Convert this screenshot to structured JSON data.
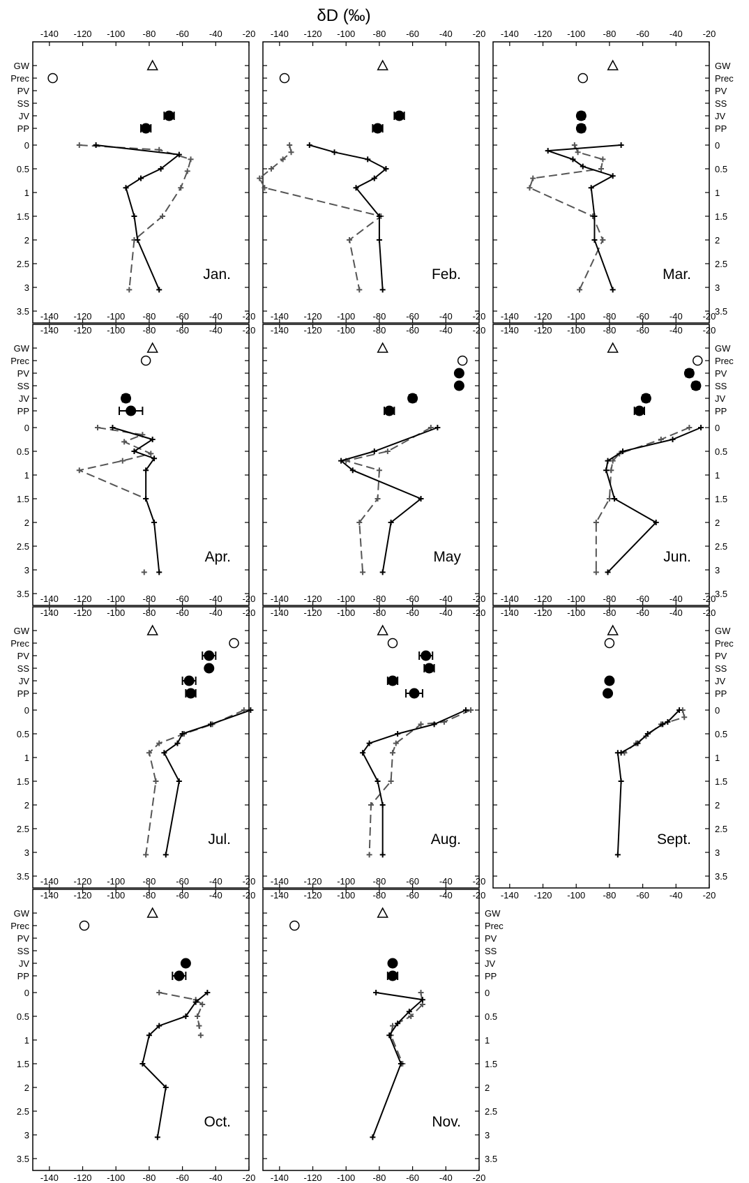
{
  "figure": {
    "title": "δD (‰)"
  },
  "axes": {
    "x_ticks": [
      "-140",
      "-120",
      "-100",
      "-80",
      "-60",
      "-40",
      "-20"
    ],
    "y_ticks": [
      "0",
      "0.5",
      "1",
      "1.5",
      "2",
      "2.5",
      "3",
      "3.5"
    ],
    "categories": [
      "GW",
      "Prec",
      "PV",
      "SS",
      "JV",
      "PP"
    ]
  },
  "chart_data": {
    "type": "scatter",
    "xlim": [
      -150,
      -20
    ],
    "ylim": [
      3.5,
      0
    ],
    "xticks": [
      -140,
      -120,
      -100,
      -80,
      -60,
      -40,
      -20
    ],
    "yticks": [
      0,
      0.5,
      1,
      1.5,
      2,
      2.5,
      3,
      3.5
    ],
    "categories": [
      "GW",
      "Prec",
      "PV",
      "SS",
      "JV",
      "PP"
    ],
    "panels": [
      {
        "label": "Jan.",
        "markers": [
          {
            "cat": "GW",
            "x": -78,
            "style": "triangle"
          },
          {
            "cat": "Prec",
            "x": -138,
            "style": "open"
          },
          {
            "cat": "JV",
            "x": -68,
            "style": "filled",
            "err": 3
          },
          {
            "cat": "PP",
            "x": -82,
            "style": "filled",
            "err": 3
          }
        ],
        "solid": [
          [
            -112,
            0
          ],
          [
            -62,
            0.2
          ],
          [
            -73,
            0.5
          ],
          [
            -85,
            0.7
          ],
          [
            -94,
            0.9
          ],
          [
            -89,
            1.5
          ],
          [
            -87,
            2
          ],
          [
            -74,
            3.05
          ]
        ],
        "dashed": [
          [
            -122,
            0
          ],
          [
            -74,
            0.1
          ],
          [
            -55,
            0.3
          ],
          [
            -57,
            0.55
          ],
          [
            -61,
            0.9
          ],
          [
            -72,
            1.5
          ],
          [
            -89,
            2
          ],
          [
            -92,
            3.05
          ]
        ]
      },
      {
        "label": "Feb.",
        "markers": [
          {
            "cat": "GW",
            "x": -78,
            "style": "triangle"
          },
          {
            "cat": "Prec",
            "x": -137,
            "style": "open"
          },
          {
            "cat": "JV",
            "x": -68,
            "style": "filled",
            "err": 3
          },
          {
            "cat": "PP",
            "x": -81,
            "style": "filled",
            "err": 3
          }
        ],
        "solid": [
          [
            -122,
            0
          ],
          [
            -107,
            0.15
          ],
          [
            -87,
            0.3
          ],
          [
            -76,
            0.5
          ],
          [
            -83,
            0.7
          ],
          [
            -94,
            0.9
          ],
          [
            -80,
            1.5
          ],
          [
            -80,
            2
          ],
          [
            -78,
            3.05
          ]
        ],
        "dashed": [
          [
            -134,
            0
          ],
          [
            -133,
            0.15
          ],
          [
            -138,
            0.3
          ],
          [
            -145,
            0.5
          ],
          [
            -152,
            0.7
          ],
          [
            -149,
            0.9
          ],
          [
            -79,
            1.5
          ],
          [
            -98,
            2
          ],
          [
            -92,
            3.05
          ]
        ]
      },
      {
        "label": "Mar.",
        "markers": [
          {
            "cat": "GW",
            "x": -78,
            "style": "triangle"
          },
          {
            "cat": "Prec",
            "x": -96,
            "style": "open"
          },
          {
            "cat": "JV",
            "x": -97,
            "style": "filled",
            "err": 2
          },
          {
            "cat": "PP",
            "x": -97,
            "style": "filled",
            "err": 2
          }
        ],
        "solid": [
          [
            -73,
            0
          ],
          [
            -117,
            0.12
          ],
          [
            -102,
            0.3
          ],
          [
            -96,
            0.45
          ],
          [
            -78,
            0.65
          ],
          [
            -91,
            0.9
          ],
          [
            -89,
            1.5
          ],
          [
            -89,
            2
          ],
          [
            -78,
            3.05
          ]
        ],
        "dashed": [
          [
            -101,
            0
          ],
          [
            -99,
            0.15
          ],
          [
            -84,
            0.3
          ],
          [
            -85,
            0.5
          ],
          [
            -126,
            0.7
          ],
          [
            -128,
            0.9
          ],
          [
            -90,
            1.5
          ],
          [
            -84,
            2
          ],
          [
            -98,
            3.05
          ]
        ]
      },
      {
        "label": "Apr.",
        "markers": [
          {
            "cat": "GW",
            "x": -78,
            "style": "triangle"
          },
          {
            "cat": "Prec",
            "x": -82,
            "style": "open"
          },
          {
            "cat": "JV",
            "x": -94,
            "style": "filled",
            "err": 2
          },
          {
            "cat": "PP",
            "x": -91,
            "style": "filled",
            "err": 7
          }
        ],
        "solid": [
          [
            -102,
            0
          ],
          [
            -78,
            0.25
          ],
          [
            -89,
            0.5
          ],
          [
            -77,
            0.65
          ],
          [
            -82,
            0.9
          ],
          [
            -82,
            1.5
          ],
          [
            -77,
            2
          ],
          [
            -74,
            3.05
          ]
        ],
        "dashed": [
          [
            -111,
            0
          ],
          [
            -84,
            0.15
          ],
          [
            -95,
            0.3
          ],
          [
            -79,
            0.55
          ],
          [
            -96,
            0.7
          ],
          [
            -122,
            0.9
          ],
          [
            -82,
            1.5
          ]
        ],
        "dashed_extra": [
          [
            -83,
            3.05
          ]
        ]
      },
      {
        "label": "May",
        "markers": [
          {
            "cat": "GW",
            "x": -78,
            "style": "triangle"
          },
          {
            "cat": "Prec",
            "x": -30,
            "style": "open"
          },
          {
            "cat": "PV",
            "x": -32,
            "style": "filled",
            "err": 0
          },
          {
            "cat": "SS",
            "x": -32,
            "style": "filled",
            "err": 0
          },
          {
            "cat": "JV",
            "x": -60,
            "style": "filled",
            "err": 2
          },
          {
            "cat": "PP",
            "x": -74,
            "style": "filled",
            "err": 3
          }
        ],
        "solid": [
          [
            -45,
            0
          ],
          [
            -83,
            0.5
          ],
          [
            -103,
            0.7
          ],
          [
            -96,
            0.9
          ],
          [
            -55,
            1.5
          ],
          [
            -73,
            2
          ],
          [
            -78,
            3.05
          ]
        ],
        "dashed": [
          [
            -49,
            0
          ],
          [
            -75,
            0.5
          ],
          [
            -100,
            0.7
          ],
          [
            -80,
            0.9
          ],
          [
            -81,
            1.5
          ],
          [
            -92,
            2
          ],
          [
            -90,
            3.05
          ]
        ]
      },
      {
        "label": "Jun.",
        "markers": [
          {
            "cat": "GW",
            "x": -78,
            "style": "triangle"
          },
          {
            "cat": "Prec",
            "x": -27,
            "style": "open"
          },
          {
            "cat": "PV",
            "x": -32,
            "style": "filled",
            "err": 2
          },
          {
            "cat": "SS",
            "x": -28,
            "style": "filled",
            "err": 2
          },
          {
            "cat": "JV",
            "x": -58,
            "style": "filled",
            "err": 2
          },
          {
            "cat": "PP",
            "x": -62,
            "style": "filled",
            "err": 3
          }
        ],
        "solid": [
          [
            -25,
            0
          ],
          [
            -42,
            0.25
          ],
          [
            -72,
            0.5
          ],
          [
            -81,
            0.7
          ],
          [
            -82,
            0.9
          ],
          [
            -77,
            1.5
          ],
          [
            -52,
            2
          ],
          [
            -81,
            3.05
          ]
        ],
        "dashed": [
          [
            -32,
            0
          ],
          [
            -49,
            0.25
          ],
          [
            -74,
            0.55
          ],
          [
            -78,
            0.7
          ],
          [
            -79,
            0.9
          ],
          [
            -80,
            1.5
          ],
          [
            -88,
            2
          ],
          [
            -88,
            3.05
          ]
        ]
      },
      {
        "label": "Jul.",
        "markers": [
          {
            "cat": "GW",
            "x": -78,
            "style": "triangle"
          },
          {
            "cat": "Prec",
            "x": -29,
            "style": "open"
          },
          {
            "cat": "PV",
            "x": -44,
            "style": "filled",
            "err": 4
          },
          {
            "cat": "SS",
            "x": -44,
            "style": "filled",
            "err": 0
          },
          {
            "cat": "JV",
            "x": -56,
            "style": "filled",
            "err": 4
          },
          {
            "cat": "PP",
            "x": -55,
            "style": "filled",
            "err": 3
          }
        ],
        "solid": [
          [
            -19,
            0
          ],
          [
            -43,
            0.3
          ],
          [
            -60,
            0.5
          ],
          [
            -63,
            0.7
          ],
          [
            -71,
            0.9
          ],
          [
            -62,
            1.5
          ],
          [
            -70,
            3.05
          ]
        ],
        "dashed": [
          [
            -23,
            0
          ],
          [
            -42,
            0.3
          ],
          [
            -59,
            0.5
          ],
          [
            -74,
            0.7
          ],
          [
            -80,
            0.9
          ],
          [
            -76,
            1.5
          ],
          [
            -82,
            3.05
          ]
        ]
      },
      {
        "label": "Aug.",
        "markers": [
          {
            "cat": "GW",
            "x": -78,
            "style": "triangle"
          },
          {
            "cat": "Prec",
            "x": -72,
            "style": "open"
          },
          {
            "cat": "PV",
            "x": -52,
            "style": "filled",
            "err": 4
          },
          {
            "cat": "SS",
            "x": -50,
            "style": "filled",
            "err": 3
          },
          {
            "cat": "JV",
            "x": -72,
            "style": "filled",
            "err": 3
          },
          {
            "cat": "PP",
            "x": -59,
            "style": "filled",
            "err": 5
          }
        ],
        "solid": [
          [
            -28,
            0
          ],
          [
            -47,
            0.3
          ],
          [
            -69,
            0.5
          ],
          [
            -86,
            0.7
          ],
          [
            -90,
            0.9
          ],
          [
            -81,
            1.5
          ],
          [
            -78,
            2
          ],
          [
            -78,
            3.05
          ]
        ],
        "dashed": [
          [
            -25,
            0
          ],
          [
            -41,
            0.25
          ],
          [
            -55,
            0.3
          ],
          [
            -70,
            0.7
          ],
          [
            -72,
            0.9
          ],
          [
            -73,
            1.5
          ],
          [
            -85,
            2
          ],
          [
            -86,
            3.05
          ]
        ]
      },
      {
        "label": "Sept.",
        "markers": [
          {
            "cat": "GW",
            "x": -78,
            "style": "triangle"
          },
          {
            "cat": "Prec",
            "x": -80,
            "style": "open"
          },
          {
            "cat": "JV",
            "x": -80,
            "style": "filled",
            "err": 0
          },
          {
            "cat": "PP",
            "x": -81,
            "style": "filled",
            "err": 0
          }
        ],
        "solid": [
          [
            -38,
            0
          ],
          [
            -45,
            0.25
          ],
          [
            -48,
            0.3
          ],
          [
            -57,
            0.5
          ],
          [
            -63,
            0.7
          ],
          [
            -73,
            0.9
          ],
          [
            -75,
            0.9
          ],
          [
            -73,
            1.5
          ],
          [
            -75,
            3.05
          ]
        ],
        "dashed": [
          [
            -36,
            0
          ],
          [
            -35,
            0.15
          ],
          [
            -49,
            0.3
          ],
          [
            -58,
            0.55
          ],
          [
            -64,
            0.7
          ],
          [
            -71,
            0.9
          ]
        ]
      },
      {
        "label": "Oct.",
        "markers": [
          {
            "cat": "GW",
            "x": -78,
            "style": "triangle"
          },
          {
            "cat": "Prec",
            "x": -119,
            "style": "open"
          },
          {
            "cat": "JV",
            "x": -58,
            "style": "filled",
            "err": 0
          },
          {
            "cat": "PP",
            "x": -62,
            "style": "filled",
            "err": 4
          }
        ],
        "solid": [
          [
            -45,
            0
          ],
          [
            -52,
            0.2
          ],
          [
            -58,
            0.5
          ],
          [
            -74,
            0.7
          ],
          [
            -80,
            0.9
          ],
          [
            -84,
            1.5
          ],
          [
            -70,
            2
          ],
          [
            -75,
            3.05
          ]
        ],
        "dashed": [
          [
            -74,
            0
          ],
          [
            -52,
            0.15
          ],
          [
            -48,
            0.25
          ],
          [
            -51,
            0.5
          ],
          [
            -50,
            0.7
          ],
          [
            -49,
            0.9
          ]
        ]
      },
      {
        "label": "Nov.",
        "markers": [
          {
            "cat": "GW",
            "x": -78,
            "style": "triangle"
          },
          {
            "cat": "Prec",
            "x": -131,
            "style": "open"
          },
          {
            "cat": "JV",
            "x": -72,
            "style": "filled",
            "err": 0
          },
          {
            "cat": "PP",
            "x": -72,
            "style": "filled",
            "err": 3
          }
        ],
        "solid": [
          [
            -82,
            0
          ],
          [
            -54,
            0.15
          ],
          [
            -62,
            0.4
          ],
          [
            -69,
            0.65
          ],
          [
            -74,
            0.9
          ],
          [
            -67,
            1.5
          ],
          [
            -84,
            3.05
          ]
        ],
        "dashed": [
          [
            -55,
            0
          ],
          [
            -54,
            0.25
          ],
          [
            -61,
            0.5
          ],
          [
            -72,
            0.7
          ],
          [
            -73,
            0.9
          ],
          [
            -66,
            1.5
          ]
        ]
      }
    ]
  }
}
